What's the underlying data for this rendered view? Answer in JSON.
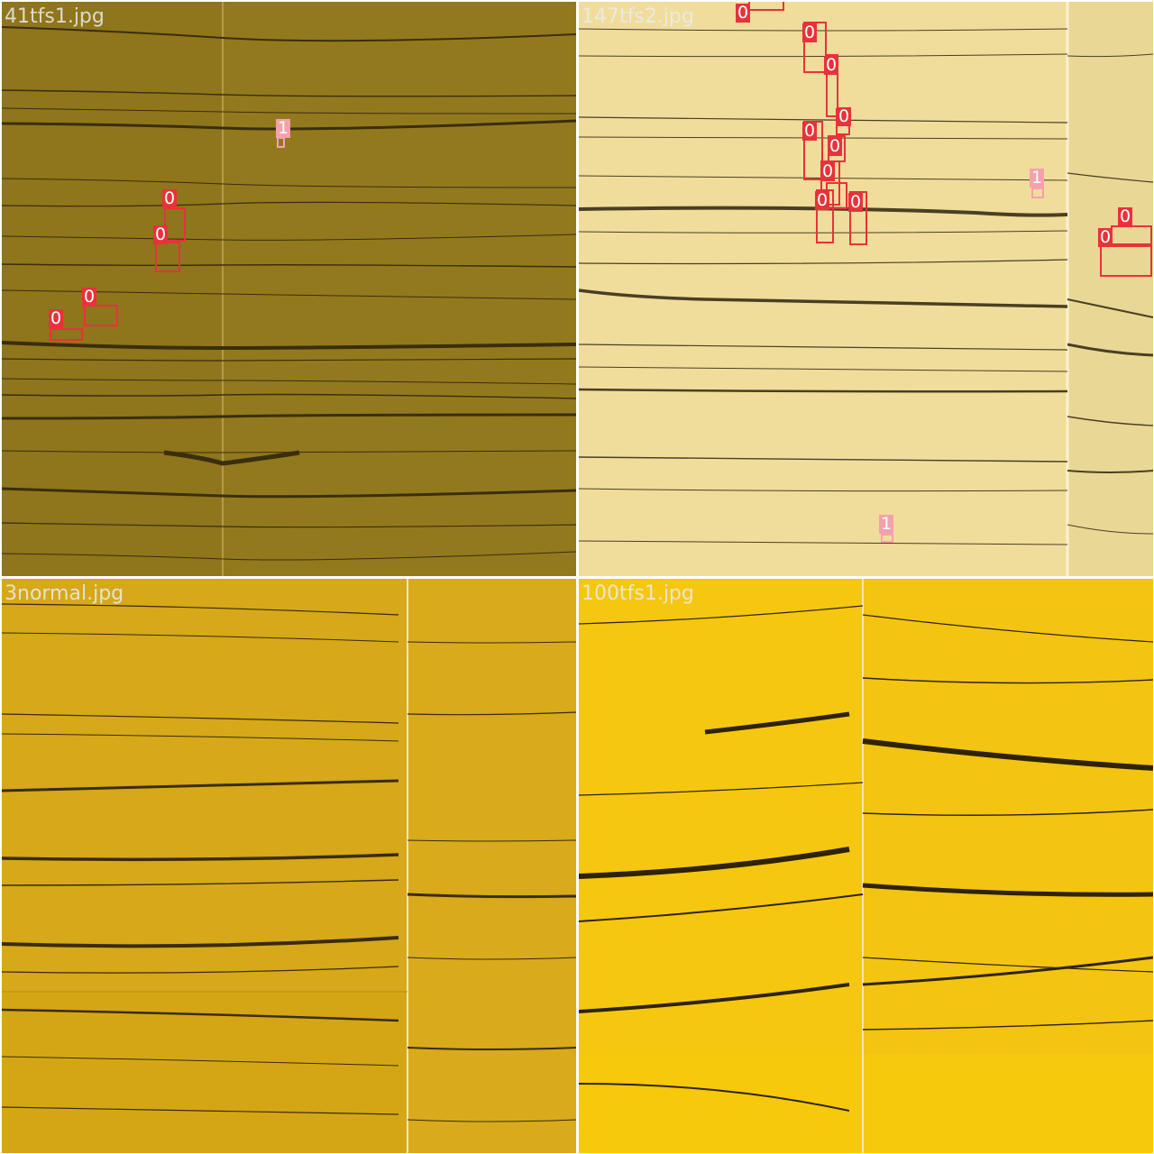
{
  "class_colors": {
    "0": "#e8323a",
    "1": "#f4a1ad"
  },
  "images": [
    {
      "filename": "41tfs1.jpg",
      "tone": "#8f751b",
      "boxes": [
        {
          "cls": "1"
        },
        {
          "cls": "0"
        },
        {
          "cls": "0"
        },
        {
          "cls": "0"
        },
        {
          "cls": "0"
        }
      ]
    },
    {
      "filename": "147tfs2.jpg",
      "tone": "#f0dd9c",
      "boxes": [
        {
          "cls": "0"
        },
        {
          "cls": "0"
        },
        {
          "cls": "0"
        },
        {
          "cls": "0"
        },
        {
          "cls": "0"
        },
        {
          "cls": "0"
        },
        {
          "cls": "0"
        },
        {
          "cls": "0"
        },
        {
          "cls": "0"
        },
        {
          "cls": "0"
        },
        {
          "cls": "0"
        },
        {
          "cls": "0"
        },
        {
          "cls": "1"
        },
        {
          "cls": "1"
        }
      ]
    },
    {
      "filename": "3normal.jpg",
      "tone": "#d6a81a",
      "boxes": []
    },
    {
      "filename": "100tfs1.jpg",
      "tone": "#f6c710",
      "boxes": []
    }
  ]
}
